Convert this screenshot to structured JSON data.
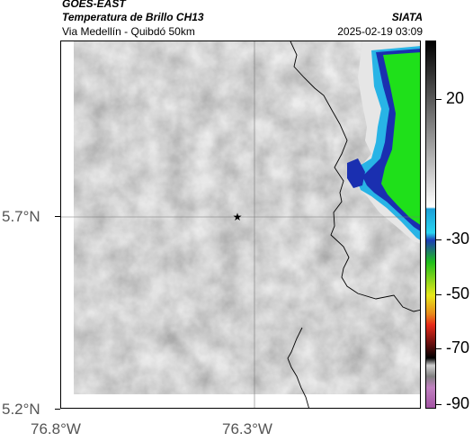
{
  "header": {
    "satellite": "GOES-EAST",
    "product": "Temperatura de Brillo CH13",
    "organization": "SIATA",
    "region": "Via Medellín - Quibdó 50km",
    "datetime": "2025-02-19 03:09"
  },
  "map": {
    "lat_ticks": [
      "5.7°N",
      "5.2°N"
    ],
    "lon_ticks": [
      "76.8°W",
      "76.3°W"
    ],
    "marker_symbol": "★",
    "colors": {
      "background_gray": "#a8a8a8",
      "ocean_green": "#1fe01a",
      "cold_blue": "#1a2fb0",
      "cyan": "#28b4e6"
    }
  },
  "colorbar": {
    "labels": [
      "20",
      "-30",
      "-50",
      "-70",
      "-90"
    ],
    "colors": [
      "#000000",
      "#ffffff",
      "#25b6e8",
      "#1fbf1a",
      "#e8e81a",
      "#e82a1a",
      "#000000",
      "#a060a0"
    ]
  }
}
